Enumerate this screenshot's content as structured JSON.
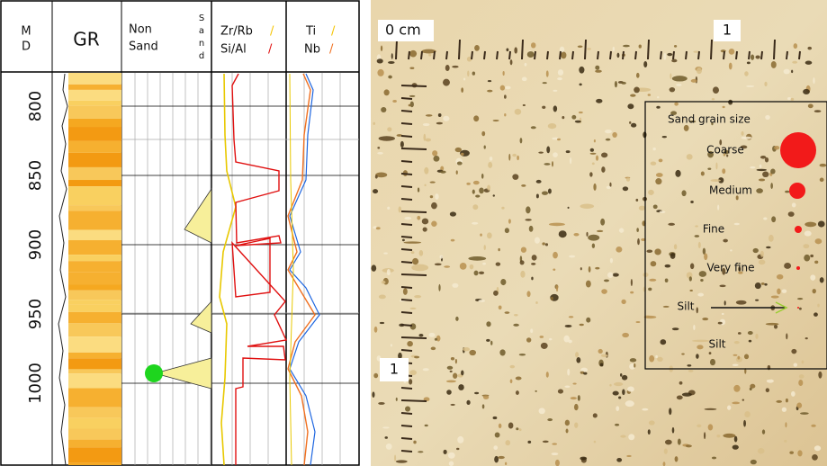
{
  "log": {
    "headers": {
      "md": [
        "M",
        "D"
      ],
      "gr": "GR",
      "non_sand": [
        "Non",
        "Sand"
      ],
      "sand": [
        "S",
        "a",
        "n",
        "d"
      ],
      "zr_rb": "Zr/Rb",
      "si_al": "Si/Al",
      "ti": "Ti",
      "nb": "Nb",
      "slash": "/"
    },
    "depth_labels": [
      "800",
      "850",
      "900",
      "950",
      "1000"
    ]
  },
  "photo": {
    "scale": {
      "origin": "0 cm",
      "top": "1",
      "left": "1"
    },
    "legend": {
      "title": "Sand grain size",
      "items": [
        "Coarse",
        "Medium",
        "Fine",
        "Very fine",
        "Silt",
        "Silt"
      ]
    }
  }
}
